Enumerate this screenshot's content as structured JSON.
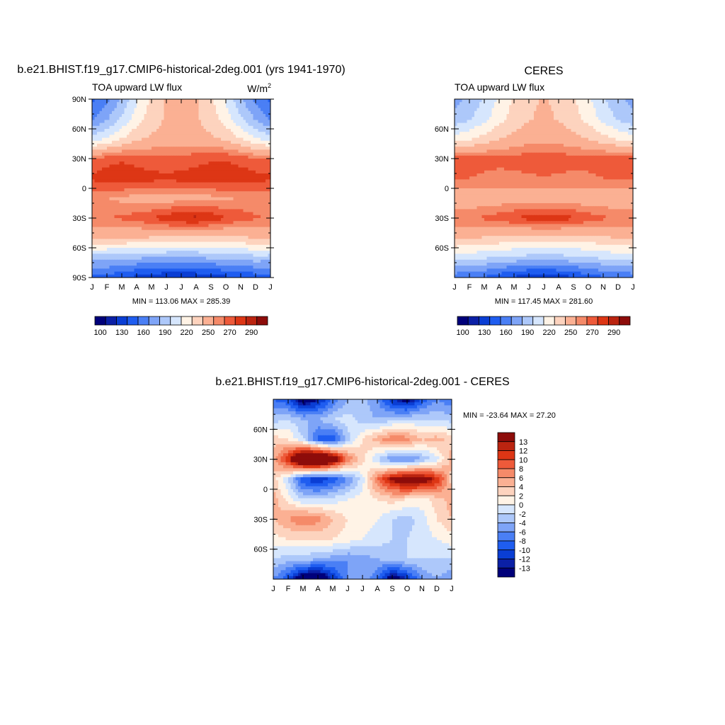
{
  "figure": {
    "panel_model": {
      "title": "b.e21.BHIST.f19_g17.CMIP6-historical-2deg.001 (yrs 1941-1970)",
      "left_label": "TOA upward LW flux",
      "units_main": "W/m",
      "units_sup": "2",
      "stats": "MIN = 113.06 MAX = 285.39"
    },
    "panel_obs": {
      "title": "CERES",
      "left_label": "TOA upward LW flux",
      "stats": "MIN = 117.45 MAX = 281.60"
    },
    "panel_diff": {
      "title": "b.e21.BHIST.f19_g17.CMIP6-historical-2deg.001 - CERES",
      "stats": "MIN = -23.64 MAX =  27.20"
    }
  },
  "chart_data": [
    {
      "type": "heatmap",
      "name": "model",
      "title": "b.e21.BHIST.f19_g17.CMIP6-historical-2deg.001 (yrs 1941-1970)",
      "x_ticks": [
        "J",
        "F",
        "M",
        "A",
        "M",
        "J",
        "J",
        "A",
        "S",
        "O",
        "N",
        "D",
        "J"
      ],
      "y_ticks": [
        "90N",
        "60N",
        "30N",
        "0",
        "30S",
        "60S",
        "90S"
      ],
      "ylim": [
        -90,
        90
      ],
      "min": 113.06,
      "max": 285.39,
      "levels": [
        100,
        115,
        130,
        145,
        160,
        175,
        190,
        205,
        220,
        235,
        250,
        260,
        270,
        280,
        290
      ],
      "colorbar_labels": [
        "100",
        "130",
        "160",
        "190",
        "220",
        "250",
        "270",
        "290"
      ],
      "colors": [
        "#00007a",
        "#0b20a6",
        "#0a3ed4",
        "#1f5df0",
        "#4a7ff5",
        "#7ea4f7",
        "#adc8fa",
        "#d6e6fd",
        "#fff3e6",
        "#fdd3be",
        "#fbb093",
        "#f58a69",
        "#ee5a3a",
        "#dd3615",
        "#bb2410",
        "#8d0c0a"
      ],
      "grid": [
        [
          141,
          156,
          178,
          203,
          223,
          238,
          243,
          238,
          223,
          203,
          178,
          156,
          141
        ],
        [
          158,
          173,
          193,
          213,
          227,
          237,
          240,
          237,
          227,
          213,
          193,
          173,
          158
        ],
        [
          198,
          206,
          220,
          232,
          238,
          242,
          243,
          242,
          238,
          232,
          220,
          206,
          198
        ],
        [
          260,
          266,
          268,
          266,
          263,
          262,
          263,
          266,
          268,
          269,
          266,
          262,
          260
        ],
        [
          272,
          276,
          278,
          276,
          274,
          273,
          274,
          276,
          278,
          278,
          276,
          274,
          272
        ],
        [
          252,
          250,
          247,
          245,
          243,
          243,
          245,
          246,
          246,
          248,
          251,
          253,
          252
        ],
        [
          260,
          260,
          262,
          265,
          270,
          276,
          281,
          283,
          278,
          271,
          266,
          261,
          260
        ],
        [
          238,
          236,
          236,
          235,
          234,
          232,
          230,
          229,
          228,
          230,
          233,
          236,
          238
        ],
        [
          183,
          182,
          180,
          177,
          175,
          174,
          174,
          175,
          177,
          180,
          182,
          184,
          183
        ],
        [
          135,
          137,
          131,
          125,
          119,
          116,
          115,
          117,
          121,
          126,
          131,
          134,
          135
        ]
      ]
    },
    {
      "type": "heatmap",
      "name": "ceres",
      "title": "CERES",
      "x_ticks": [
        "J",
        "F",
        "M",
        "A",
        "M",
        "J",
        "J",
        "A",
        "S",
        "O",
        "N",
        "D",
        "J"
      ],
      "y_ticks": [
        "60N",
        "30N",
        "0",
        "30S",
        "60S"
      ],
      "ylim": [
        -90,
        90
      ],
      "min": 117.45,
      "max": 281.6,
      "levels": [
        100,
        115,
        130,
        145,
        160,
        175,
        190,
        205,
        220,
        235,
        250,
        260,
        270,
        280,
        290
      ],
      "colorbar_labels": [
        "100",
        "130",
        "160",
        "190",
        "220",
        "250",
        "270",
        "290"
      ],
      "colors": [
        "#00007a",
        "#0b20a6",
        "#0a3ed4",
        "#1f5df0",
        "#4a7ff5",
        "#7ea4f7",
        "#adc8fa",
        "#d6e6fd",
        "#fff3e6",
        "#fdd3be",
        "#fbb093",
        "#f58a69",
        "#ee5a3a",
        "#dd3615",
        "#bb2410",
        "#8d0c0a"
      ],
      "grid": [
        [
          170,
          178,
          192,
          208,
          222,
          232,
          236,
          232,
          222,
          208,
          192,
          178,
          170
        ],
        [
          180,
          188,
          200,
          215,
          226,
          234,
          238,
          234,
          226,
          215,
          200,
          188,
          180
        ],
        [
          212,
          218,
          226,
          234,
          240,
          244,
          246,
          244,
          240,
          234,
          226,
          218,
          212
        ],
        [
          268,
          266,
          264,
          263,
          264,
          266,
          268,
          266,
          264,
          264,
          265,
          267,
          268
        ],
        [
          262,
          260,
          258,
          257,
          257,
          258,
          259,
          258,
          257,
          258,
          260,
          261,
          262
        ],
        [
          240,
          240,
          241,
          242,
          243,
          243,
          243,
          242,
          241,
          240,
          240,
          240,
          240
        ],
        [
          258,
          259,
          262,
          266,
          270,
          274,
          277,
          276,
          272,
          267,
          262,
          259,
          258
        ],
        [
          238,
          236,
          234,
          232,
          230,
          228,
          227,
          227,
          228,
          230,
          233,
          236,
          238
        ],
        [
          196,
          195,
          192,
          189,
          186,
          184,
          183,
          184,
          186,
          189,
          192,
          195,
          196
        ],
        [
          150,
          148,
          142,
          134,
          126,
          121,
          120,
          122,
          128,
          136,
          143,
          148,
          150
        ]
      ]
    },
    {
      "type": "heatmap",
      "name": "difference",
      "title": "b.e21.BHIST.f19_g17.CMIP6-historical-2deg.001 - CERES",
      "x_ticks": [
        "J",
        "F",
        "M",
        "A",
        "M",
        "J",
        "J",
        "A",
        "S",
        "O",
        "N",
        "D",
        "J"
      ],
      "y_ticks": [
        "60N",
        "30N",
        "0",
        "30S",
        "60S"
      ],
      "ylim": [
        -90,
        90
      ],
      "min": -23.64,
      "max": 27.2,
      "levels": [
        -13,
        -12,
        -10,
        -8,
        -6,
        -4,
        -2,
        0,
        2,
        4,
        6,
        8,
        10,
        12,
        13
      ],
      "colorbar_labels": [
        "13",
        "12",
        "10",
        "8",
        "6",
        "4",
        "2",
        "0",
        "-2",
        "-4",
        "-6",
        "-8",
        "-10",
        "-12",
        "-13"
      ],
      "colors": [
        "#00007a",
        "#0b20a6",
        "#0a3ed4",
        "#1f5df0",
        "#4a7ff5",
        "#7ea4f7",
        "#adc8fa",
        "#d6e6fd",
        "#fff3e6",
        "#fdd3be",
        "#fbb093",
        "#f58a69",
        "#ee5a3a",
        "#dd3615",
        "#bb2410",
        "#8d0c0a"
      ],
      "grid": [
        [
          -8,
          -10,
          -16,
          -13,
          -8,
          -4,
          -3,
          -6,
          -12,
          -15,
          -10,
          -6,
          -8
        ],
        [
          -3,
          -2,
          -4,
          -4,
          -2,
          -1,
          -3,
          -4,
          -3,
          -2,
          -2,
          -2,
          -3
        ],
        [
          3,
          2,
          -2,
          -9,
          -10,
          -3,
          2,
          5,
          8,
          7,
          4,
          5,
          3
        ],
        [
          5,
          12,
          22,
          24,
          18,
          8,
          3,
          -2,
          -6,
          -7,
          -4,
          -1,
          5
        ],
        [
          3,
          -2,
          -10,
          -12,
          -10,
          -6,
          -1,
          8,
          14,
          17,
          16,
          12,
          3
        ],
        [
          5,
          1,
          -2,
          -2,
          -1,
          0,
          1,
          2,
          3,
          2,
          1,
          3,
          5
        ],
        [
          4,
          6,
          8,
          7,
          4,
          2,
          1,
          0,
          -2,
          -3,
          -1,
          2,
          4
        ],
        [
          1,
          2,
          2,
          2,
          2,
          1,
          0,
          -1,
          -2,
          -2,
          -1,
          0,
          1
        ],
        [
          -2,
          -3,
          -3,
          -4,
          -5,
          -6,
          -5,
          -4,
          -3,
          -2,
          -2,
          -2,
          -2
        ],
        [
          -6,
          -10,
          -17,
          -18,
          -12,
          -6,
          -4,
          -8,
          -16,
          -12,
          -6,
          -4,
          -6
        ]
      ]
    }
  ]
}
